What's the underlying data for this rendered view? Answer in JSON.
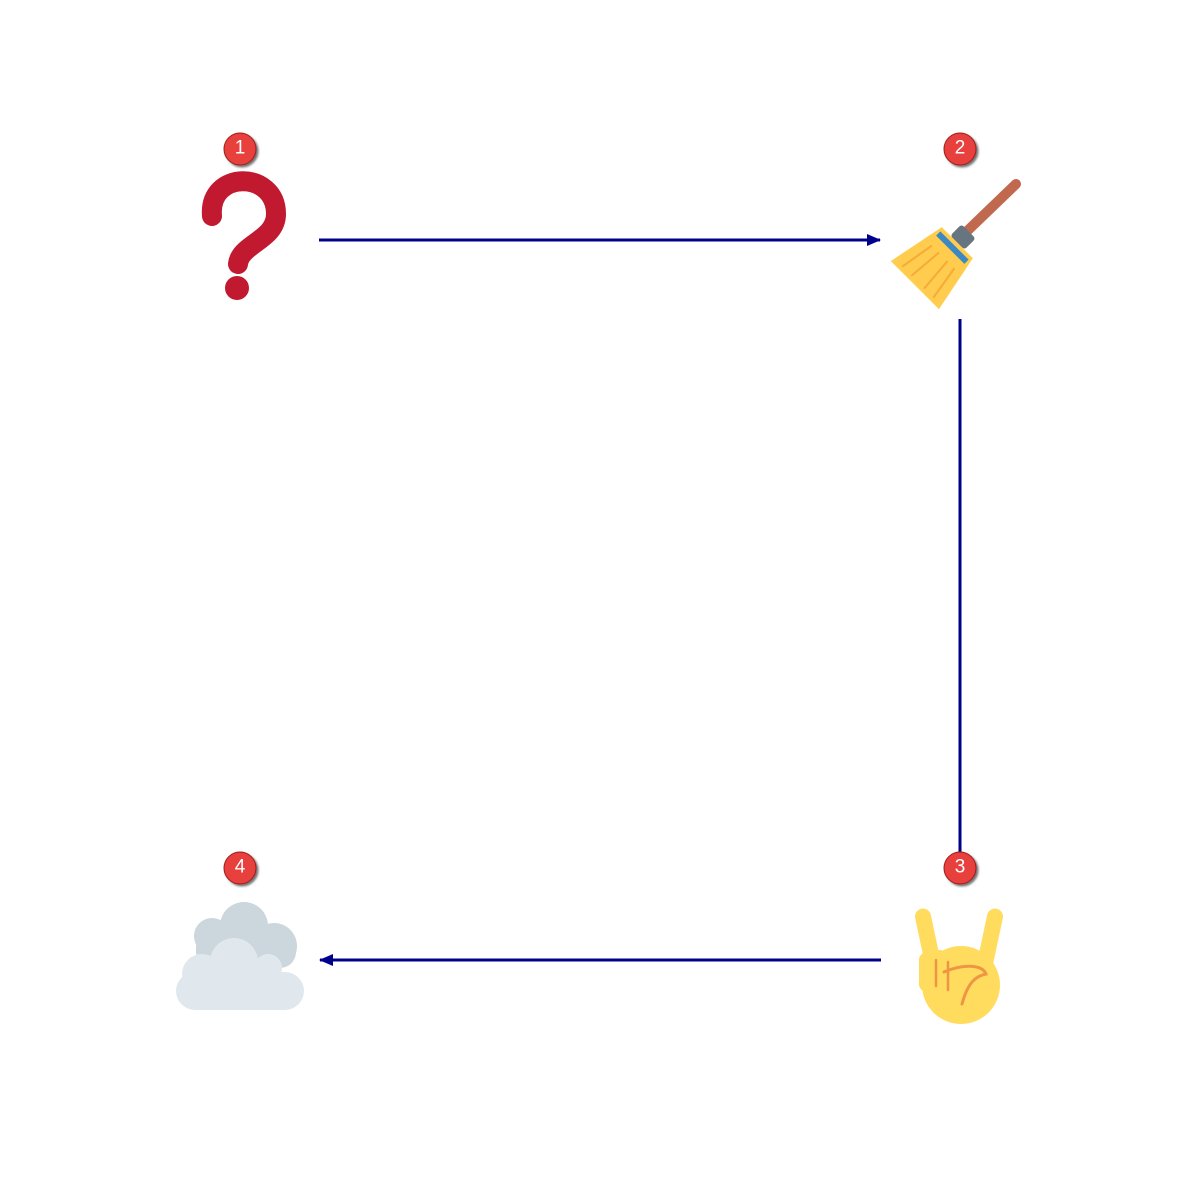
{
  "diagram": {
    "arrow_color": "#00008b",
    "badge_color": "#e8403d",
    "nodes": [
      {
        "id": "1",
        "badge": "1",
        "icon": "question-mark-icon"
      },
      {
        "id": "2",
        "badge": "2",
        "icon": "broom-icon"
      },
      {
        "id": "3",
        "badge": "3",
        "icon": "victory-hand-icon"
      },
      {
        "id": "4",
        "badge": "4",
        "icon": "cloud-icon"
      }
    ],
    "edges": [
      {
        "from": "1",
        "to": "2"
      },
      {
        "from": "2",
        "to": "3"
      },
      {
        "from": "3",
        "to": "4"
      }
    ]
  }
}
